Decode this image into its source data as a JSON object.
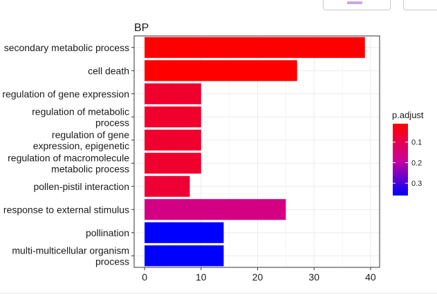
{
  "chart_data": {
    "type": "bar",
    "orientation": "horizontal",
    "title": "BP",
    "xlabel": "",
    "ylabel": "",
    "xlim": [
      0,
      41
    ],
    "xticks": [
      0,
      10,
      20,
      30,
      40
    ],
    "categories": [
      [
        "secondary metabolic process"
      ],
      [
        "cell death"
      ],
      [
        "regulation of gene expression"
      ],
      [
        "regulation of metabolic",
        "process"
      ],
      [
        "regulation of gene",
        "expression, epigenetic"
      ],
      [
        "regulation of macromolecule",
        "metabolic process"
      ],
      [
        "pollen-pistil interaction"
      ],
      [
        "response to external stimulus"
      ],
      [
        "pollination"
      ],
      [
        "multi-multicellular organism",
        "process"
      ]
    ],
    "values": [
      39,
      27,
      10,
      10,
      10,
      10,
      8,
      25,
      14,
      14
    ],
    "p_adjust": [
      0.01,
      0.01,
      0.06,
      0.06,
      0.06,
      0.06,
      0.07,
      0.16,
      0.36,
      0.36
    ],
    "colorbar": {
      "title": "p.adjust",
      "ticks": [
        0.1,
        0.2,
        0.3
      ],
      "range": [
        0.01,
        0.36
      ],
      "low_color": "#ff0000",
      "high_color": "#0000ff"
    },
    "grid": true,
    "legend_position": "right"
  },
  "colors": {
    "panel_border": "#333333",
    "grid": "#ebebeb"
  }
}
